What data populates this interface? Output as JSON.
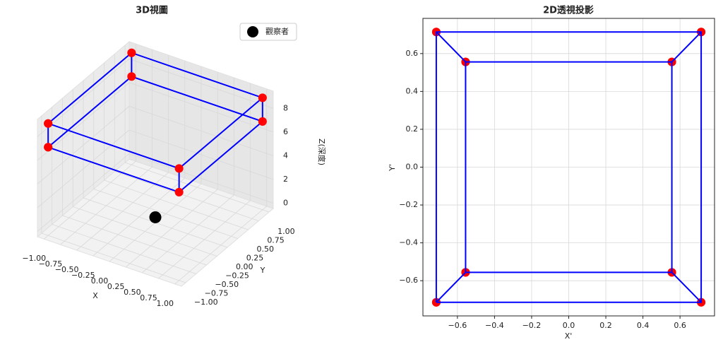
{
  "chart_data": [
    {
      "type": "scatter3d",
      "title": "3D視圖",
      "xlabel": "X",
      "ylabel": "Y",
      "zlabel": "Z(深度)",
      "xlim": [
        -1.1,
        1.1
      ],
      "ylim": [
        -1.1,
        1.1
      ],
      "zlim": [
        -0.45,
        9.45
      ],
      "xticks": [
        {
          "value": -1,
          "label": "−1.00"
        },
        {
          "value": -0.75,
          "label": "−0.75"
        },
        {
          "value": -0.5,
          "label": "−0.50"
        },
        {
          "value": -0.25,
          "label": "−0.25"
        },
        {
          "value": 0,
          "label": "0.00"
        },
        {
          "value": 0.25,
          "label": "0.25"
        },
        {
          "value": 0.5,
          "label": "0.50"
        },
        {
          "value": 0.75,
          "label": "0.75"
        },
        {
          "value": 1,
          "label": "1.00"
        }
      ],
      "yticks": [
        {
          "value": -1,
          "label": "−1.00"
        },
        {
          "value": -0.75,
          "label": "−0.75"
        },
        {
          "value": -0.5,
          "label": "−0.50"
        },
        {
          "value": -0.25,
          "label": "−0.25"
        },
        {
          "value": 0,
          "label": "0.00"
        },
        {
          "value": 0.25,
          "label": "0.25"
        },
        {
          "value": 0.5,
          "label": "0.50"
        },
        {
          "value": 0.75,
          "label": "0.75"
        },
        {
          "value": 1,
          "label": "1.00"
        }
      ],
      "zticks": [
        0,
        2,
        4,
        6,
        8
      ],
      "grid": true,
      "legend": "upper right",
      "series": [
        {
          "color": "#0000ff",
          "marker_color": "#ff0000",
          "x": [
            -1,
            1,
            1,
            -1,
            -1,
            null,
            -1,
            1,
            1,
            -1,
            -1,
            null,
            -1,
            -1,
            null,
            1,
            1,
            null,
            1,
            1,
            null,
            -1,
            -1
          ],
          "y": [
            -1,
            -1,
            1,
            1,
            -1,
            null,
            -1,
            -1,
            1,
            1,
            -1,
            null,
            -1,
            -1,
            null,
            -1,
            -1,
            null,
            1,
            1,
            null,
            1,
            1
          ],
          "z": [
            7,
            7,
            7,
            7,
            7,
            null,
            9,
            9,
            9,
            9,
            9,
            null,
            7,
            9,
            null,
            7,
            9,
            null,
            7,
            9,
            null,
            7,
            9
          ]
        },
        {
          "name": "觀察者",
          "color": "#000000",
          "x": [
            0
          ],
          "y": [
            0
          ],
          "z": [
            0
          ]
        }
      ]
    },
    {
      "type": "line",
      "title": "2D透視投影",
      "xlabel": "X'",
      "ylabel": "Y'",
      "xlim": [
        -0.786,
        0.786
      ],
      "ylim": [
        -0.786,
        0.786
      ],
      "xticks": [
        {
          "value": -0.6,
          "label": "−0.6"
        },
        {
          "value": -0.4,
          "label": "−0.4"
        },
        {
          "value": -0.2,
          "label": "−0.2"
        },
        {
          "value": 0,
          "label": "0.0"
        },
        0.2,
        0.4,
        0.6
      ],
      "yticks": [
        {
          "value": -0.6,
          "label": "−0.6"
        },
        {
          "value": -0.4,
          "label": "−0.4"
        },
        {
          "value": -0.2,
          "label": "−0.2"
        },
        {
          "value": 0,
          "label": "0.0"
        },
        0.2,
        0.4,
        0.6
      ],
      "grid": true,
      "series": [
        {
          "color": "#0000ff",
          "marker_color": "#ff0000",
          "x": [
            -0.714,
            0.714,
            0.714,
            -0.714,
            -0.714,
            null,
            -0.556,
            0.556,
            0.556,
            -0.556,
            -0.556,
            null,
            -0.714,
            -0.556,
            null,
            0.714,
            0.556,
            null,
            0.714,
            0.556,
            null,
            -0.714,
            -0.556
          ],
          "y": [
            -0.714,
            -0.714,
            0.714,
            0.714,
            -0.714,
            null,
            -0.556,
            -0.556,
            0.556,
            0.556,
            -0.556,
            null,
            -0.714,
            -0.556,
            null,
            -0.714,
            -0.556,
            null,
            0.714,
            0.556,
            null,
            0.714,
            0.556
          ]
        }
      ]
    }
  ]
}
